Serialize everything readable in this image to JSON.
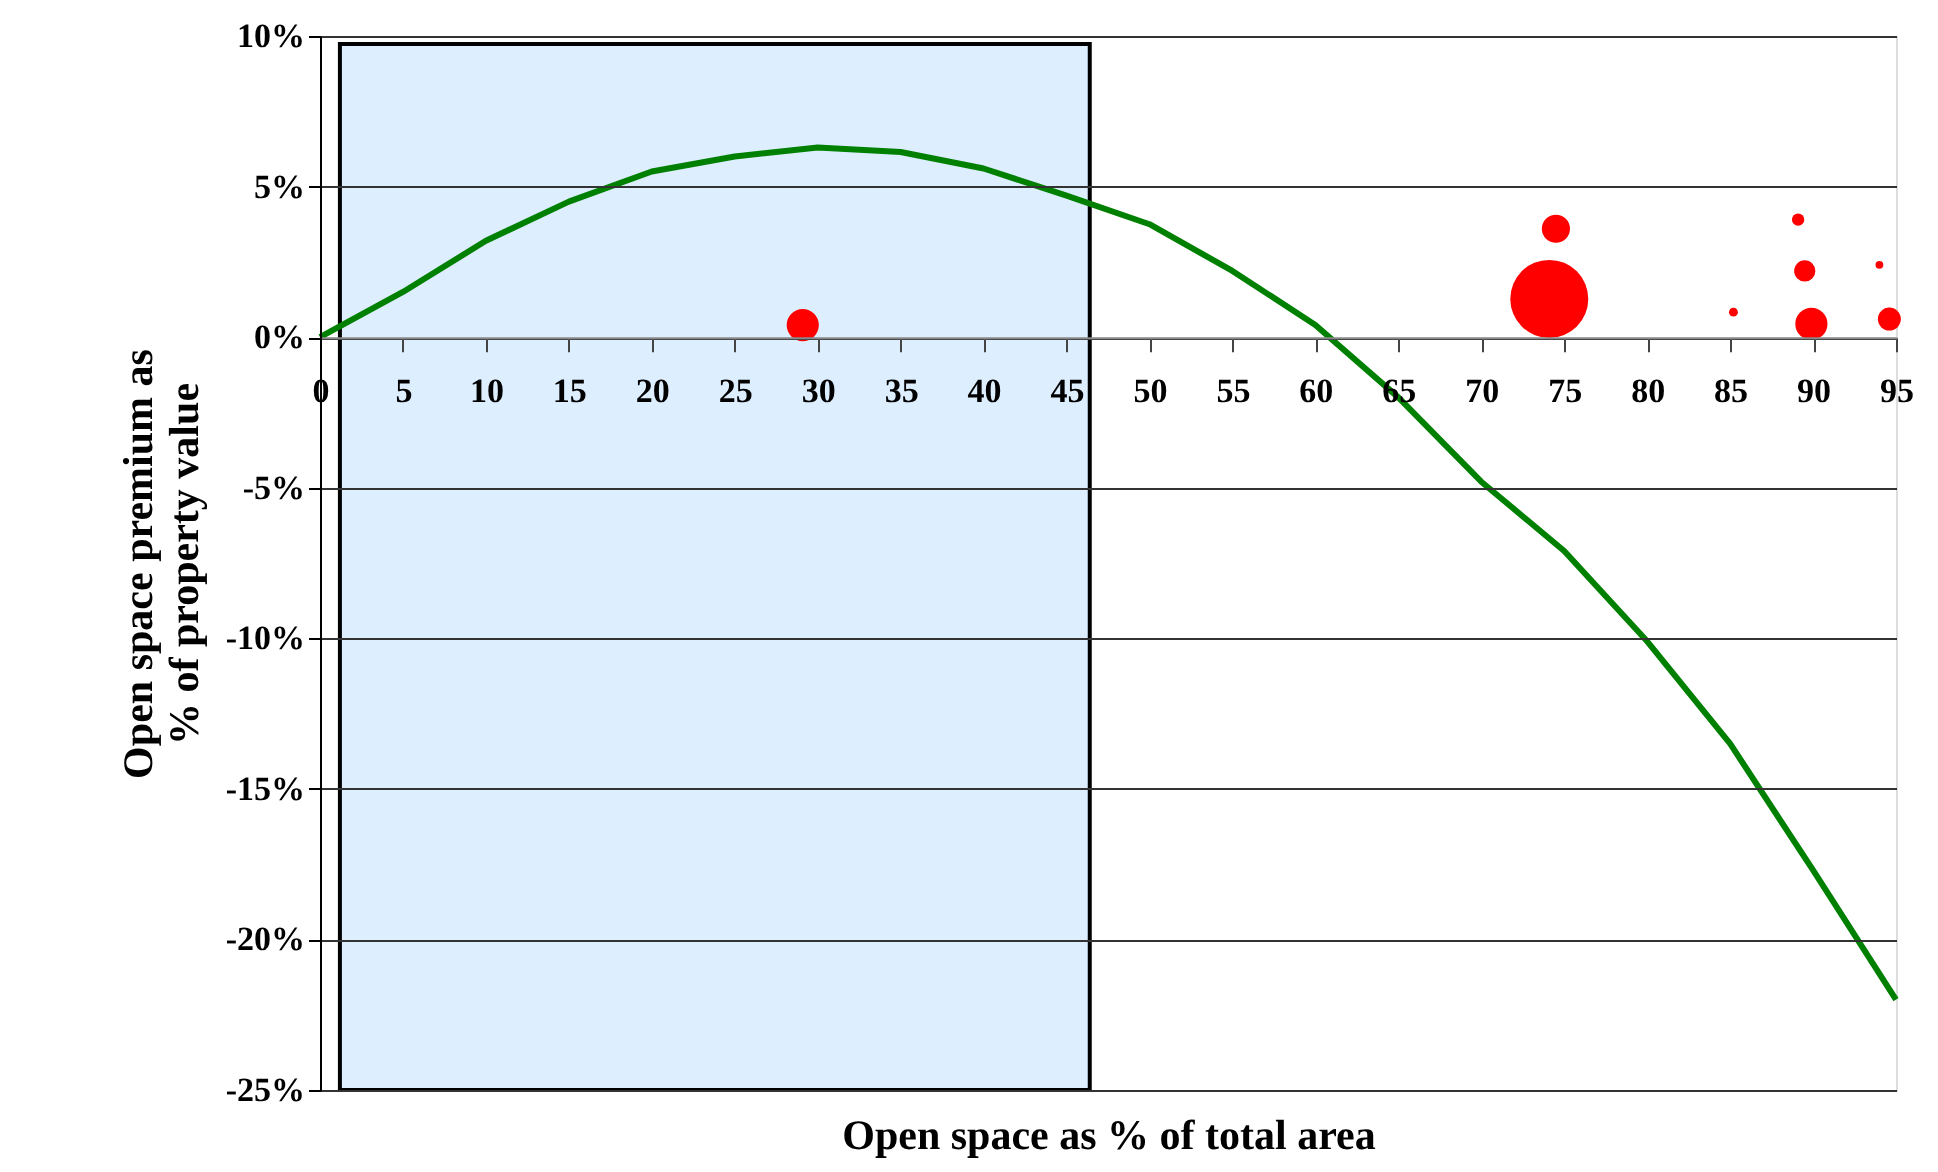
{
  "chart_data": {
    "type": "line",
    "xlabel": "Open space as % of total area",
    "ylabel": "Open space premium as % of property value",
    "xlim": [
      0,
      95
    ],
    "xticks": [
      0,
      5,
      10,
      15,
      20,
      25,
      30,
      35,
      40,
      45,
      50,
      55,
      60,
      65,
      70,
      75,
      80,
      85,
      90,
      95
    ],
    "ylim": [
      -25,
      10
    ],
    "yticks": [
      {
        "value": 10,
        "label": "10%"
      },
      {
        "value": 5,
        "label": "5%"
      },
      {
        "value": 0,
        "label": "0%"
      },
      {
        "value": -5,
        "label": "-5%"
      },
      {
        "value": -10,
        "label": "-10%"
      },
      {
        "value": -15,
        "label": "-15%"
      },
      {
        "value": -20,
        "label": "-20%"
      },
      {
        "value": -25,
        "label": "-25%"
      }
    ],
    "grid": "y",
    "line_style": "solid",
    "bands": [
      {
        "axis": "x",
        "from": 1.2,
        "to": 46.4,
        "color": "#ddeeff"
      }
    ],
    "series": [
      {
        "color": "#008000",
        "x": [
          0,
          5,
          10,
          15,
          20,
          25,
          30,
          35,
          40,
          45,
          50,
          55,
          60,
          65,
          70,
          75,
          80,
          85,
          90,
          95
        ],
        "values": [
          0,
          1.5,
          3.2,
          4.5,
          5.5,
          6.0,
          6.3,
          6.15,
          5.6,
          4.7,
          3.75,
          2.2,
          0.4,
          -2.0,
          -4.8,
          -7.1,
          -10.1,
          -13.5,
          -17.7,
          -22.0
        ]
      },
      {
        "type": "bubble",
        "color": "#ff0000",
        "x": [
          29.1,
          74.5,
          74.1,
          85.2,
          89.1,
          89.5,
          89.9,
          94.0,
          94.6
        ],
        "values": [
          0.4,
          3.6,
          1.27,
          0.83,
          3.9,
          2.2,
          0.44,
          2.4,
          0.6
        ],
        "sizes": [
          0.17,
          0.13,
          1,
          0.013,
          0.025,
          0.074,
          0.17,
          0.01,
          0.087
        ]
      }
    ]
  }
}
